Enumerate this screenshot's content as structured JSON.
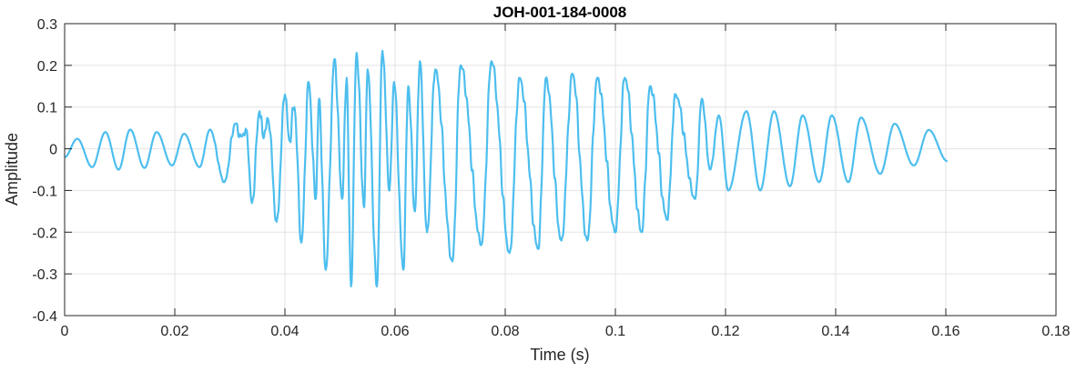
{
  "chart_data": {
    "type": "line",
    "title": "JOH-001-184-0008",
    "xlabel": "Time (s)",
    "ylabel": "Amplitude",
    "xlim": [
      0,
      0.18
    ],
    "ylim": [
      -0.4,
      0.3
    ],
    "grid": true,
    "xticks": [
      0,
      0.02,
      0.04,
      0.06,
      0.08,
      0.1,
      0.12,
      0.14,
      0.16,
      0.18
    ],
    "xtick_labels": [
      "0",
      "0.02",
      "0.04",
      "0.06",
      "0.08",
      "0.1",
      "0.12",
      "0.14",
      "0.16",
      "0.18"
    ],
    "yticks": [
      -0.4,
      -0.3,
      -0.2,
      -0.1,
      0,
      0.1,
      0.2,
      0.3
    ],
    "ytick_labels": [
      "-0.4",
      "-0.3",
      "-0.2",
      "-0.1",
      "0",
      "0.1",
      "0.2",
      "0.3"
    ],
    "line_color": "#4DBEEE",
    "series": [
      {
        "name": "waveform",
        "extrema_t": [
          0,
          0.0023,
          0.005,
          0.0074,
          0.0098,
          0.0119,
          0.0145,
          0.0167,
          0.0195,
          0.0217,
          0.0245,
          0.0264,
          0.029,
          0.031,
          0.032,
          0.033,
          0.034,
          0.0354,
          0.036,
          0.037,
          0.0385,
          0.04,
          0.0408,
          0.0417,
          0.043,
          0.0443,
          0.0456,
          0.0462,
          0.0474,
          0.049,
          0.0504,
          0.0512,
          0.052,
          0.053,
          0.0544,
          0.055,
          0.0567,
          0.0577,
          0.059,
          0.0598,
          0.0615,
          0.0624,
          0.0636,
          0.0645,
          0.0658,
          0.0673,
          0.0704,
          0.0719,
          0.0757,
          0.0775,
          0.0808,
          0.0826,
          0.086,
          0.0874,
          0.0902,
          0.0922,
          0.0949,
          0.0967,
          0.1,
          0.1017,
          0.1048,
          0.1063,
          0.1094,
          0.1109,
          0.1145,
          0.1157,
          0.1172,
          0.1188,
          0.1205,
          0.1238,
          0.1263,
          0.1288,
          0.1317,
          0.134,
          0.137,
          0.1393,
          0.1423,
          0.1446,
          0.1481,
          0.1507,
          0.1542,
          0.1569,
          0.1603
        ],
        "extrema_y": [
          -0.02,
          0.024,
          -0.044,
          0.04,
          -0.05,
          0.046,
          -0.046,
          0.04,
          -0.04,
          0.036,
          -0.044,
          0.046,
          -0.08,
          0.06,
          0.03,
          0.045,
          -0.13,
          0.09,
          0.03,
          0.068,
          -0.175,
          0.13,
          0.02,
          0.1,
          -0.225,
          0.16,
          -0.12,
          0.12,
          -0.29,
          0.215,
          -0.12,
          0.17,
          -0.33,
          0.23,
          -0.14,
          0.19,
          -0.33,
          0.235,
          -0.1,
          0.16,
          -0.29,
          0.15,
          -0.15,
          0.21,
          -0.2,
          0.19,
          -0.27,
          0.2,
          -0.23,
          0.21,
          -0.25,
          0.17,
          -0.24,
          0.17,
          -0.22,
          0.18,
          -0.22,
          0.17,
          -0.2,
          0.17,
          -0.2,
          0.15,
          -0.17,
          0.13,
          -0.12,
          0.12,
          -0.05,
          0.08,
          -0.1,
          0.09,
          -0.1,
          0.09,
          -0.09,
          0.08,
          -0.08,
          0.08,
          -0.08,
          0.075,
          -0.06,
          0.06,
          -0.04,
          0.045,
          -0.03
        ]
      }
    ]
  }
}
